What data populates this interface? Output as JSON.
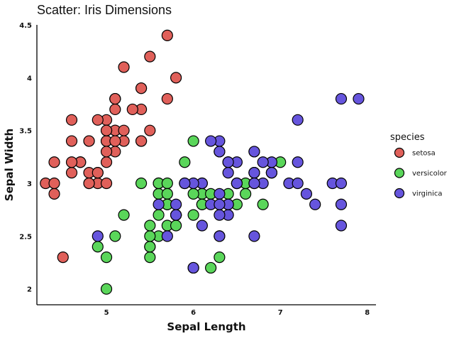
{
  "chart_data": {
    "type": "scatter",
    "title": "Scatter: Iris Dimensions",
    "xlabel": "Sepal Length",
    "ylabel": "Sepal Width",
    "xlim": [
      4.2,
      8.1
    ],
    "ylim": [
      1.85,
      4.5
    ],
    "xticks": [
      5,
      6,
      7,
      8
    ],
    "yticks": [
      2,
      2.5,
      3,
      3.5,
      4,
      4.5
    ],
    "xtick_labels": [
      "5",
      "6",
      "7",
      "8"
    ],
    "ytick_labels": [
      "2",
      "2.5",
      "3",
      "3.5",
      "4",
      "4.5"
    ],
    "grid": false,
    "legend": {
      "title": "species",
      "placement": "right"
    },
    "series": [
      {
        "name": "setosa",
        "color": "#e0605a",
        "x": [
          5.1,
          4.9,
          4.7,
          4.6,
          5.0,
          5.4,
          4.6,
          5.0,
          4.4,
          4.9,
          5.4,
          4.8,
          4.8,
          4.3,
          5.8,
          5.7,
          5.4,
          5.1,
          5.7,
          5.1,
          5.4,
          5.1,
          4.6,
          5.1,
          4.8,
          5.0,
          5.0,
          5.2,
          5.2,
          4.7,
          4.8,
          5.4,
          5.2,
          5.5,
          4.9,
          5.0,
          5.5,
          4.9,
          4.4,
          5.1,
          5.0,
          4.5,
          4.4,
          5.0,
          5.1,
          4.8,
          5.1,
          4.6,
          5.3,
          5.0
        ],
        "y": [
          3.5,
          3.0,
          3.2,
          3.1,
          3.6,
          3.9,
          3.4,
          3.4,
          2.9,
          3.1,
          3.7,
          3.4,
          3.0,
          3.0,
          4.0,
          4.4,
          3.9,
          3.5,
          3.8,
          3.8,
          3.4,
          3.7,
          3.6,
          3.3,
          3.4,
          3.0,
          3.4,
          3.5,
          3.4,
          3.2,
          3.1,
          3.4,
          4.1,
          4.2,
          3.1,
          3.2,
          3.5,
          3.6,
          3.0,
          3.4,
          3.5,
          2.3,
          3.2,
          3.5,
          3.8,
          3.0,
          3.8,
          3.2,
          3.7,
          3.3
        ]
      },
      {
        "name": "versicolor",
        "color": "#5ad65a",
        "x": [
          7.0,
          6.4,
          6.9,
          5.5,
          6.5,
          5.7,
          6.3,
          4.9,
          6.6,
          5.2,
          5.0,
          5.9,
          6.0,
          6.1,
          5.6,
          6.7,
          5.6,
          5.8,
          6.2,
          5.6,
          5.9,
          6.1,
          6.3,
          6.1,
          6.4,
          6.6,
          6.8,
          6.7,
          6.0,
          5.7,
          5.5,
          5.5,
          5.8,
          6.0,
          5.4,
          6.0,
          6.7,
          6.3,
          5.6,
          5.5,
          5.5,
          6.1,
          5.8,
          5.0,
          5.6,
          5.7,
          5.7,
          6.2,
          5.1,
          5.7
        ],
        "y": [
          3.2,
          3.2,
          3.1,
          2.3,
          2.8,
          2.8,
          3.3,
          2.4,
          2.9,
          2.7,
          2.0,
          3.0,
          2.2,
          2.9,
          2.9,
          3.1,
          3.0,
          2.7,
          2.2,
          2.5,
          3.2,
          2.8,
          2.5,
          2.8,
          2.9,
          3.0,
          2.8,
          3.0,
          2.9,
          2.6,
          2.4,
          2.4,
          2.7,
          2.7,
          3.0,
          3.4,
          3.1,
          2.3,
          3.0,
          2.5,
          2.6,
          3.0,
          2.6,
          2.3,
          2.7,
          3.0,
          2.9,
          2.9,
          2.5,
          2.8
        ]
      },
      {
        "name": "virginica",
        "color": "#6655dd",
        "x": [
          6.3,
          5.8,
          7.1,
          6.3,
          6.5,
          7.6,
          4.9,
          7.3,
          6.7,
          7.2,
          6.5,
          6.4,
          6.8,
          5.7,
          5.8,
          6.4,
          6.5,
          7.7,
          7.7,
          6.0,
          6.9,
          5.6,
          7.7,
          6.3,
          6.7,
          7.2,
          6.2,
          6.1,
          6.4,
          7.2,
          7.4,
          7.9,
          6.4,
          6.3,
          6.1,
          7.7,
          6.3,
          6.4,
          6.0,
          6.9,
          6.7,
          6.9,
          5.8,
          6.8,
          6.7,
          6.7,
          6.3,
          6.5,
          6.2,
          5.9
        ],
        "y": [
          3.3,
          2.7,
          3.0,
          2.9,
          3.0,
          3.0,
          2.5,
          2.9,
          2.5,
          3.6,
          3.2,
          2.7,
          3.0,
          2.5,
          2.8,
          3.2,
          3.0,
          3.8,
          2.6,
          2.2,
          3.2,
          2.8,
          2.8,
          2.7,
          3.3,
          3.2,
          2.8,
          3.0,
          2.8,
          3.0,
          2.8,
          3.8,
          2.8,
          2.8,
          2.6,
          3.0,
          3.4,
          3.1,
          3.0,
          3.1,
          3.1,
          3.1,
          2.7,
          3.2,
          3.3,
          3.0,
          2.5,
          3.0,
          3.4,
          3.0
        ]
      }
    ]
  }
}
